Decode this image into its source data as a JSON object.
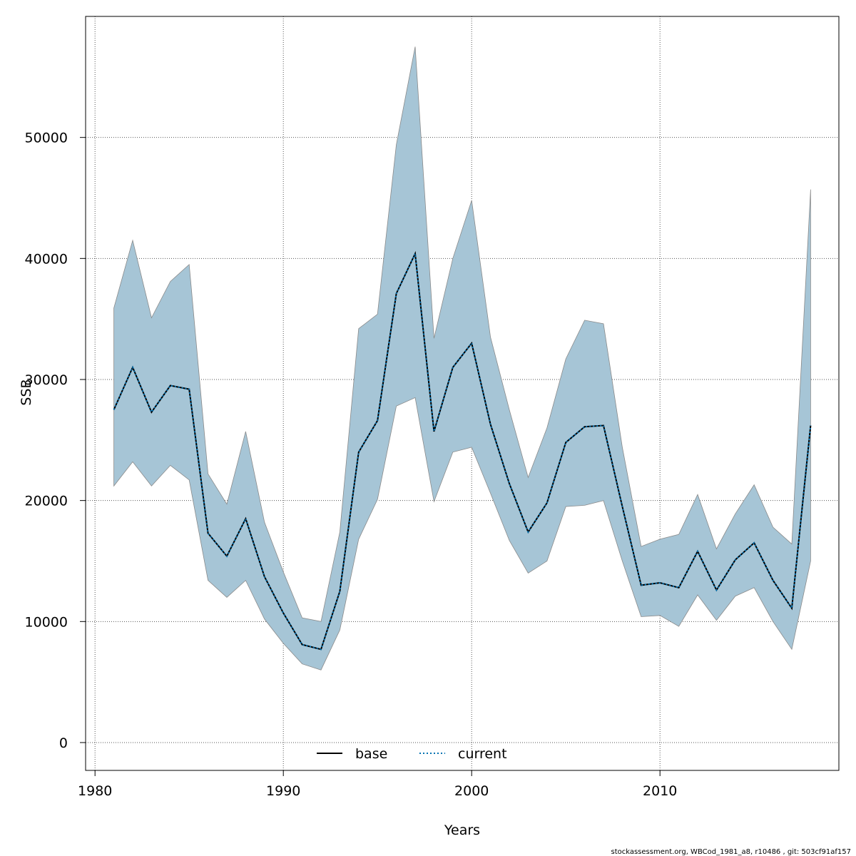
{
  "chart_data": {
    "type": "line",
    "xlabel": "Years",
    "ylabel": "SSB",
    "xlim": [
      1979.5,
      2019.5
    ],
    "ylim": [
      -2300,
      60000
    ],
    "x_ticks": [
      1980,
      1990,
      2000,
      2010
    ],
    "y_ticks": [
      0,
      10000,
      20000,
      30000,
      40000,
      50000
    ],
    "grid": true,
    "legend_position": "bottom-center",
    "band_color": "#a6c5d6",
    "series": [
      {
        "name": "base",
        "color": "#000000",
        "dash": "solid",
        "x": [
          1981,
          1982,
          1983,
          1984,
          1985,
          1986,
          1987,
          1988,
          1989,
          1990,
          1991,
          1992,
          1993,
          1994,
          1995,
          1996,
          1997,
          1998,
          1999,
          2000,
          2001,
          2002,
          2003,
          2004,
          2005,
          2006,
          2007,
          2008,
          2009,
          2010,
          2011,
          2012,
          2013,
          2014,
          2015,
          2016,
          2017,
          2018
        ],
        "values": [
          27500,
          31000,
          27300,
          29500,
          29200,
          17300,
          15400,
          18500,
          13700,
          10700,
          8100,
          7700,
          12500,
          24000,
          26600,
          37100,
          40400,
          25700,
          31000,
          33000,
          26300,
          21400,
          17400,
          19800,
          24800,
          26100,
          26200,
          19500,
          13000,
          13200,
          12800,
          15800,
          12600,
          15100,
          16500,
          13400,
          11100,
          26200
        ]
      },
      {
        "name": "current",
        "color": "#0072b2",
        "dash": "dotted",
        "x": [
          1981,
          1982,
          1983,
          1984,
          1985,
          1986,
          1987,
          1988,
          1989,
          1990,
          1991,
          1992,
          1993,
          1994,
          1995,
          1996,
          1997,
          1998,
          1999,
          2000,
          2001,
          2002,
          2003,
          2004,
          2005,
          2006,
          2007,
          2008,
          2009,
          2010,
          2011,
          2012,
          2013,
          2014,
          2015,
          2016,
          2017,
          2018
        ],
        "values": [
          27500,
          31000,
          27300,
          29500,
          29200,
          17300,
          15400,
          18500,
          13700,
          10700,
          8100,
          7700,
          12500,
          24000,
          26600,
          37100,
          40400,
          25700,
          31000,
          33000,
          26300,
          21400,
          17400,
          19800,
          24800,
          26100,
          26200,
          19500,
          13000,
          13200,
          12800,
          15800,
          12600,
          15100,
          16500,
          13400,
          11100,
          26200
        ]
      }
    ],
    "band": {
      "x": [
        1981,
        1982,
        1983,
        1984,
        1985,
        1986,
        1987,
        1988,
        1989,
        1990,
        1991,
        1992,
        1993,
        1994,
        1995,
        1996,
        1997,
        1998,
        1999,
        2000,
        2001,
        2002,
        2003,
        2004,
        2005,
        2006,
        2007,
        2008,
        2009,
        2010,
        2011,
        2012,
        2013,
        2014,
        2015,
        2016,
        2017,
        2018
      ],
      "lower": [
        21200,
        23200,
        21200,
        22900,
        21700,
        13400,
        12000,
        13400,
        10200,
        8200,
        6500,
        6000,
        9300,
        16800,
        20100,
        27800,
        28500,
        19900,
        24000,
        24400,
        20600,
        16700,
        14000,
        15000,
        19500,
        19600,
        20000,
        15000,
        10400,
        10500,
        9600,
        12200,
        10100,
        12100,
        12800,
        10000,
        7700,
        15000
      ],
      "upper": [
        35900,
        41500,
        35100,
        38100,
        39500,
        22200,
        19700,
        25700,
        18200,
        14100,
        10300,
        10000,
        17400,
        34200,
        35400,
        49400,
        57500,
        33400,
        40000,
        44800,
        33500,
        27500,
        21900,
        26000,
        31700,
        34900,
        34600,
        24400,
        16200,
        16800,
        17200,
        20500,
        16000,
        18900,
        21300,
        17800,
        16400,
        45700
      ]
    }
  },
  "legend": {
    "base_label": "base",
    "current_label": "current"
  },
  "footnote": "stockassessment.org, WBCod_1981_a8, r10486 , git: 503cf91af157"
}
